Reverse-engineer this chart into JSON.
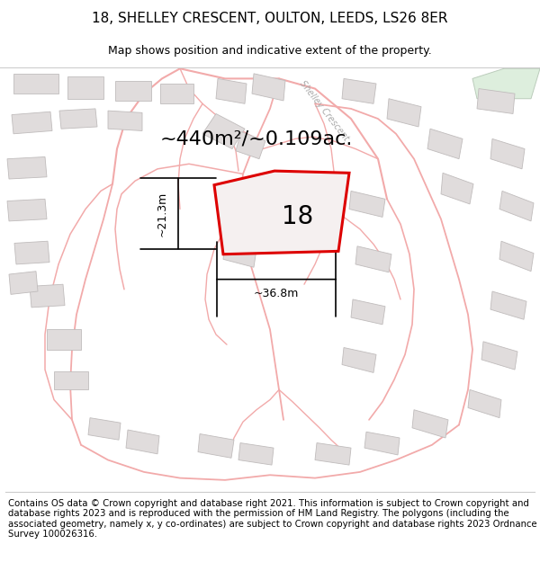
{
  "title": "18, SHELLEY CRESCENT, OULTON, LEEDS, LS26 8ER",
  "subtitle": "Map shows position and indicative extent of the property.",
  "area_label": "~440m²/~0.109ac.",
  "number_label": "18",
  "dim_horizontal": "~36.8m",
  "dim_vertical": "~21.3m",
  "footer": "Contains OS data © Crown copyright and database right 2021. This information is subject to Crown copyright and database rights 2023 and is reproduced with the permission of HM Land Registry. The polygons (including the associated geometry, namely x, y co-ordinates) are subject to Crown copyright and database rights 2023 Ordnance Survey 100026316.",
  "bg_color": "#ffffff",
  "map_bg": "#f8f6f6",
  "plot_color": "#dd0000",
  "road_color": "#f2aaaa",
  "road_lw": 1.2,
  "building_face": "#e0dcdc",
  "building_edge": "#c0bcbc",
  "green_face": "#ddeedd",
  "green_edge": "#bbccbb",
  "title_fontsize": 11,
  "subtitle_fontsize": 9,
  "footer_fontsize": 7.3,
  "shelley_label_color": "#aaaaaa",
  "dim_fontsize": 9,
  "area_fontsize": 16,
  "number_fontsize": 20
}
